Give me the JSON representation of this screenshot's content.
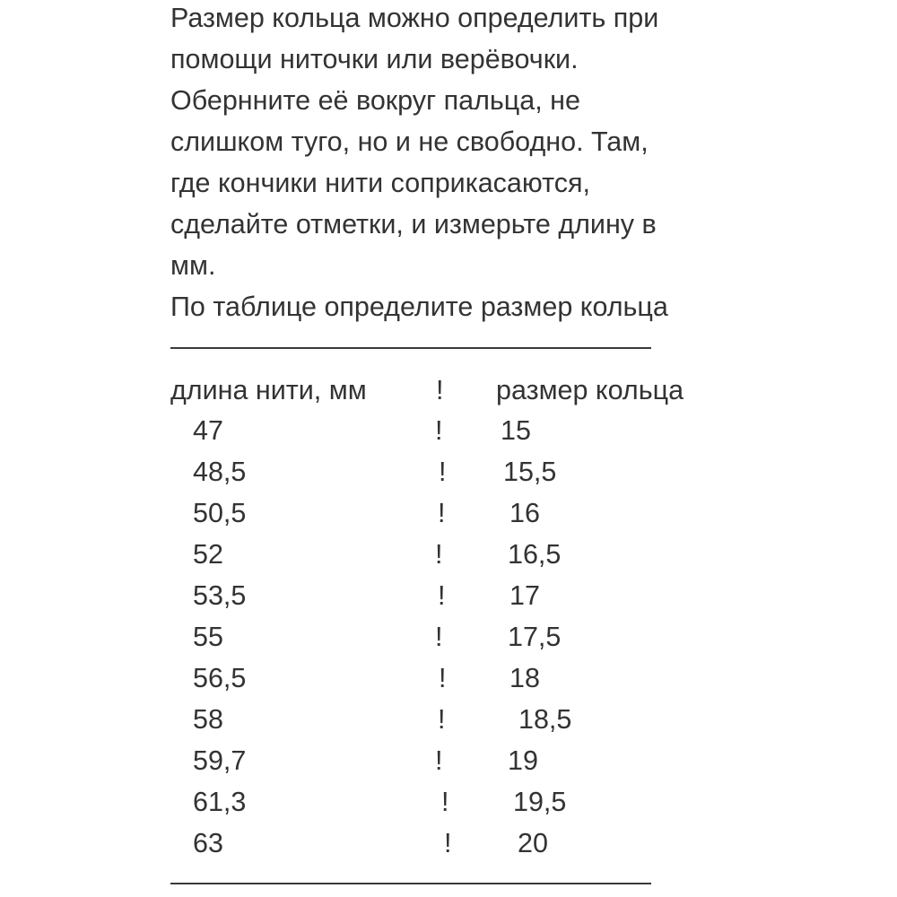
{
  "intro_lines": [
    "Размер кольца можно определить при",
    "помощи ниточки или верёвочки.",
    "Обернните её вокруг пальца, не",
    "слишком туго, но и не свободно. Там,",
    "где кончики нити соприкасаются,",
    "сделайте отметки, и измерьте длину в",
    "мм.",
    "По таблице определите размер кольца"
  ],
  "table": {
    "header": {
      "length": "длина нити, мм",
      "separator": "!",
      "size": "размер кольца"
    },
    "rows": [
      {
        "length": "47",
        "sep": "!",
        "size": "15"
      },
      {
        "length": "48,5",
        "sep": "!",
        "size": "15,5"
      },
      {
        "length": "50,5",
        "sep": "!",
        "size": "16"
      },
      {
        "length": "52",
        "sep": "!",
        "size": "16,5"
      },
      {
        "length": "53,5",
        "sep": "!",
        "size": "17"
      },
      {
        "length": "55",
        "sep": "!",
        "size": "17,5"
      },
      {
        "length": "56,5",
        "sep": "!",
        "size": "18"
      },
      {
        "length": "58",
        "sep": "!",
        "size": "18,5"
      },
      {
        "length": "59,7",
        "sep": "!",
        "size": "19"
      },
      {
        "length": "61,3",
        "sep": "!",
        "size": "19,5"
      },
      {
        "length": "63",
        "sep": "!",
        "size": "20"
      }
    ]
  },
  "colors": {
    "text": "#333333",
    "background": "#ffffff"
  }
}
